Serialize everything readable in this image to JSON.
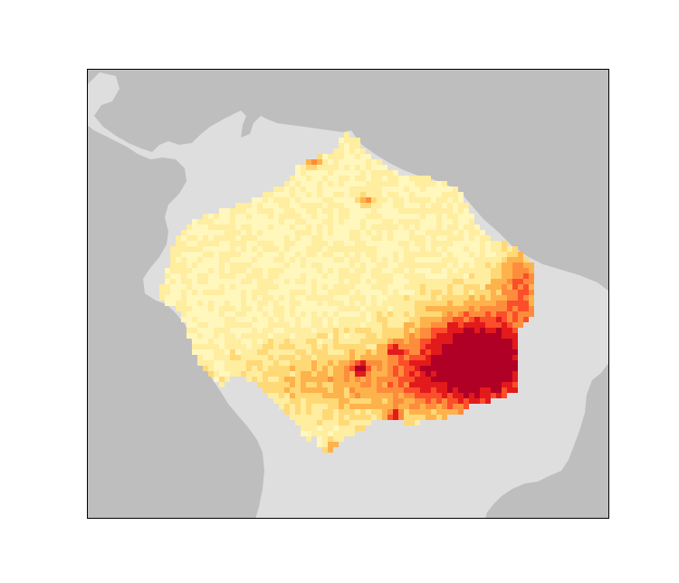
{
  "map": {
    "colors": {
      "ocean": "#bebebe",
      "land": "#dedede",
      "frame": "#000000"
    },
    "color_scale": [
      "#fff7bc",
      "#ffeda0",
      "#fed976",
      "#feb24c",
      "#fd8d3c",
      "#fc4e2a",
      "#e31a1c",
      "#b10026"
    ],
    "raster_description_note": ""
  }
}
